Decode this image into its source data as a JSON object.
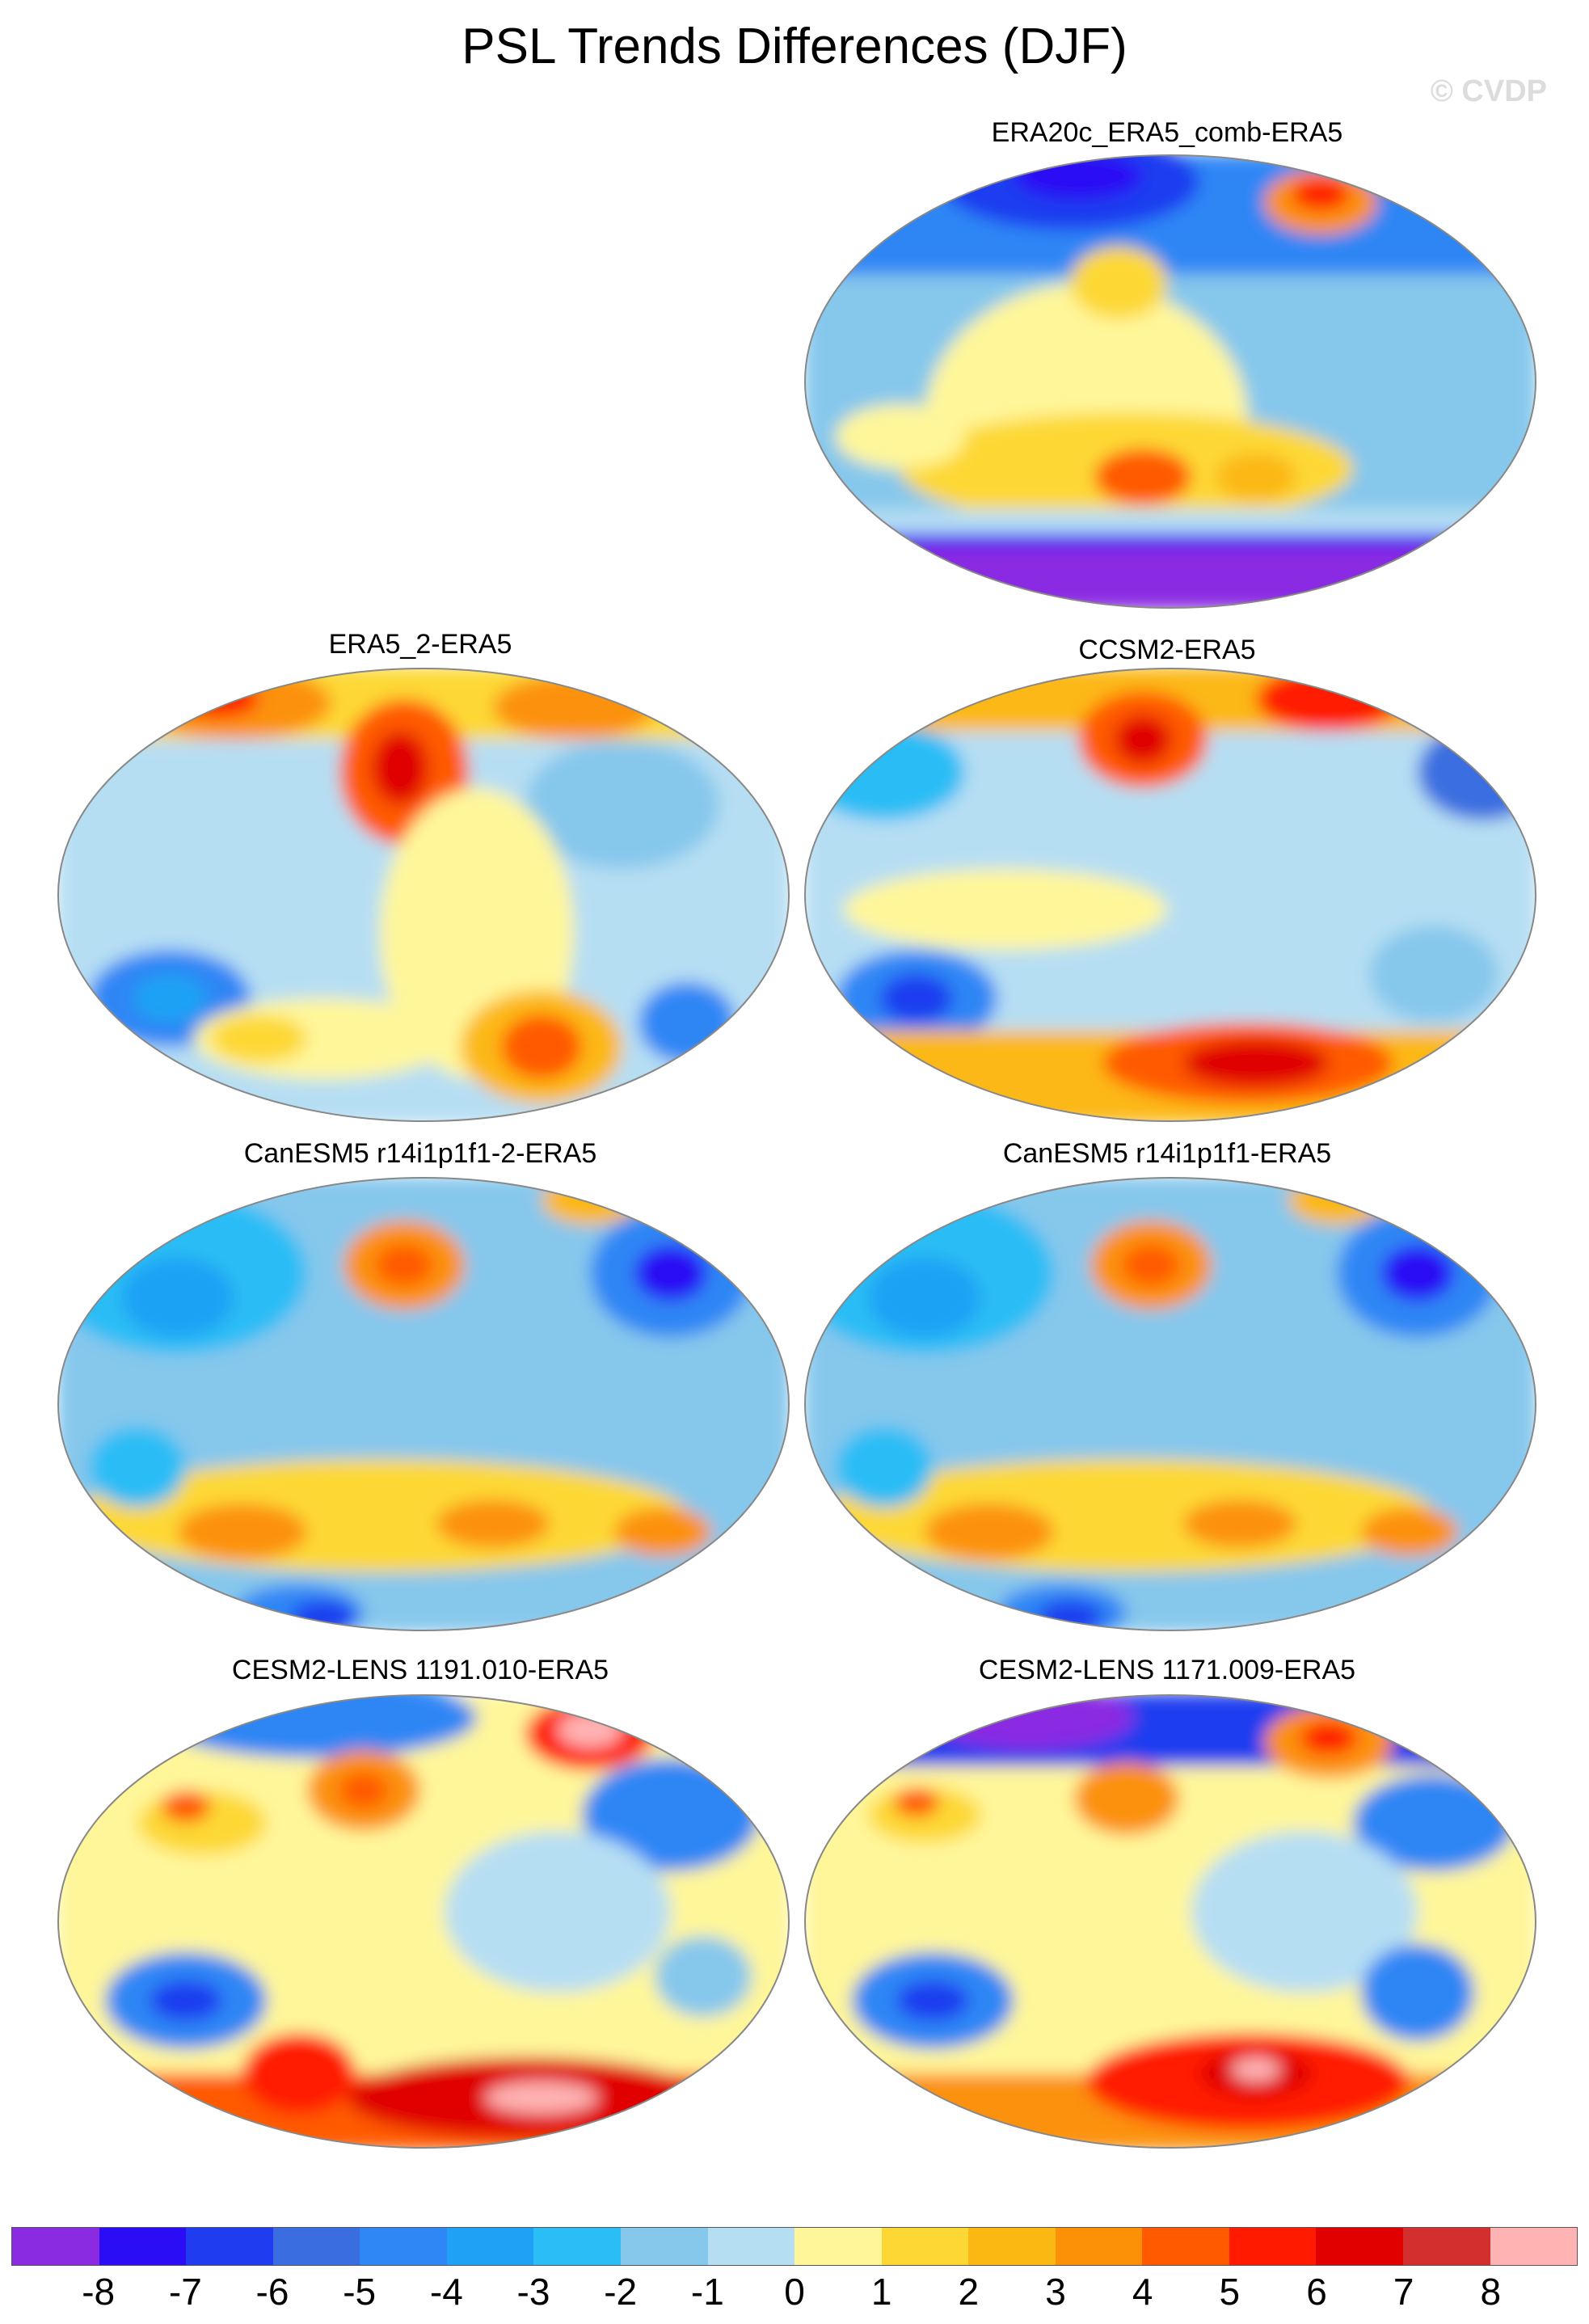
{
  "title": "PSL Trends Differences (DJF)",
  "watermark": "© CVDP",
  "panels": [
    {
      "id": "era20c",
      "title": "ERA20c_ERA5_comb-ERA5"
    },
    {
      "id": "era5_2",
      "title": "ERA5_2-ERA5"
    },
    {
      "id": "ccsm2",
      "title": "CCSM2-ERA5"
    },
    {
      "id": "canesm5_2",
      "title": "CanESM5 r14i1p1f1-2-ERA5"
    },
    {
      "id": "canesm5",
      "title": "CanESM5 r14i1p1f1-ERA5"
    },
    {
      "id": "cesm2_1191",
      "title": "CESM2-LENS 1191.010-ERA5"
    },
    {
      "id": "cesm2_1171",
      "title": "CESM2-LENS 1171.009-ERA5"
    }
  ],
  "colorbar": {
    "labels": [
      "-8",
      "-7",
      "-6",
      "-5",
      "-4",
      "-3",
      "-2",
      "-1",
      "0",
      "1",
      "2",
      "3",
      "4",
      "5",
      "6",
      "7",
      "8"
    ],
    "colors": [
      "#8a2be2",
      "#2a0df5",
      "#1f3cf0",
      "#3a6ee0",
      "#2f86f5",
      "#1fa2f5",
      "#2bbdf5",
      "#86c7ec",
      "#b6def3",
      "#fff69a",
      "#fdd835",
      "#fcb812",
      "#fc9108",
      "#ff5a00",
      "#ff1a00",
      "#e00000",
      "#d32f2f",
      "#ffb3b3"
    ]
  }
}
